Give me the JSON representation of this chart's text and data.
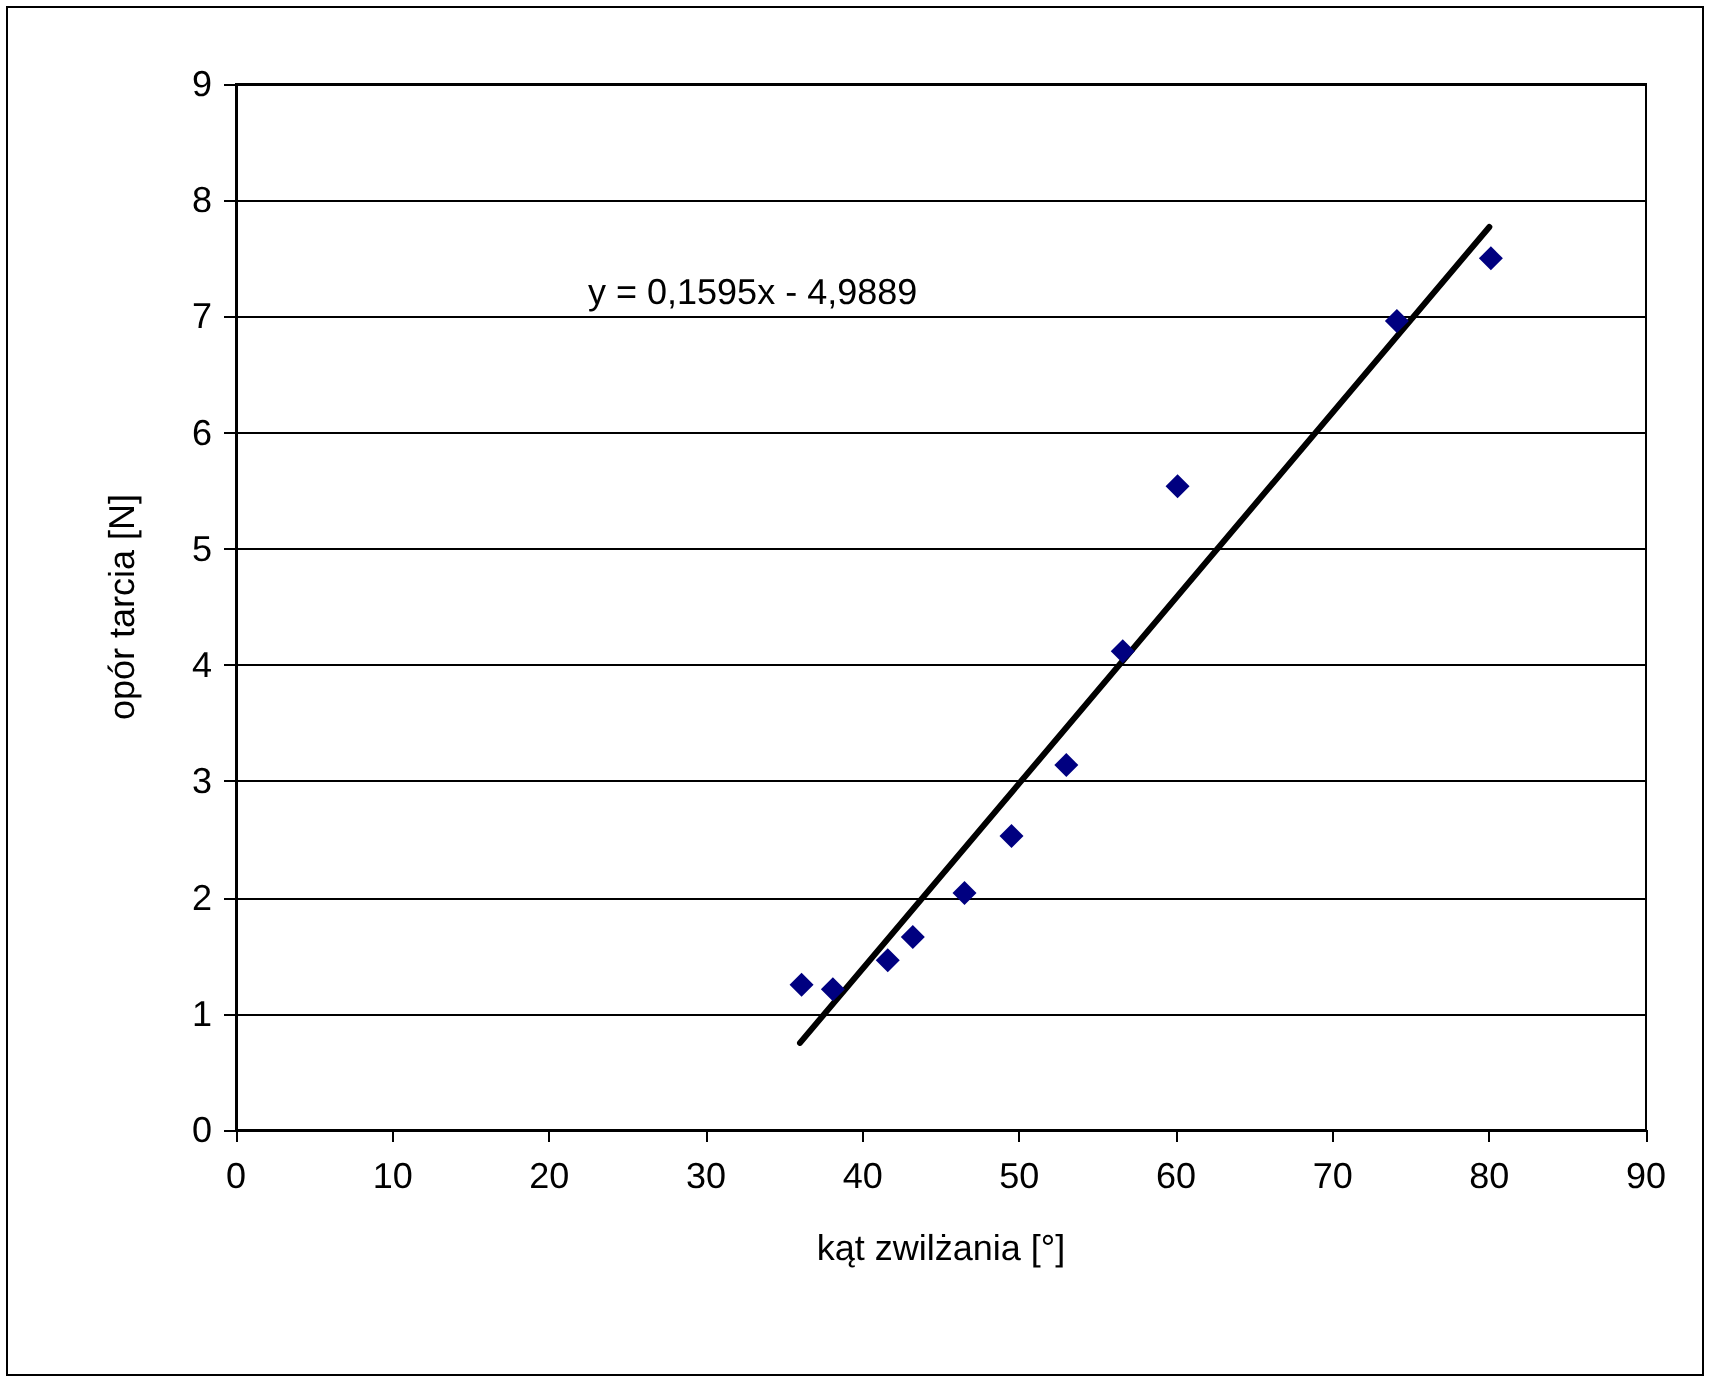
{
  "chart_data": {
    "type": "scatter",
    "xlabel": "kąt zwilżania [°]",
    "ylabel": "opór tarcia [N]",
    "xlim": [
      0,
      90
    ],
    "xticks": [
      0,
      10,
      20,
      30,
      40,
      50,
      60,
      70,
      80,
      90
    ],
    "ylim": [
      0,
      9
    ],
    "yticks": [
      0,
      1,
      2,
      3,
      4,
      5,
      6,
      7,
      8,
      9
    ],
    "grid": "y",
    "marker": "diamond",
    "annotations": [
      "y = 0,1595x - 4,9889"
    ],
    "series": [
      {
        "type": "scatter",
        "color": "#000080",
        "x": [
          36.1,
          38.1,
          41.6,
          43.2,
          46.5,
          49.5,
          53.0,
          56.6,
          60.1,
          74.1,
          80.1
        ],
        "values": [
          1.25,
          1.21,
          1.46,
          1.66,
          2.04,
          2.53,
          3.14,
          4.12,
          5.54,
          6.96,
          7.5
        ]
      },
      {
        "type": "line",
        "color": "#000000",
        "line_style": "solid",
        "marker": "none",
        "x": [
          36,
          80
        ],
        "values": [
          0.75,
          7.77
        ]
      }
    ]
  }
}
